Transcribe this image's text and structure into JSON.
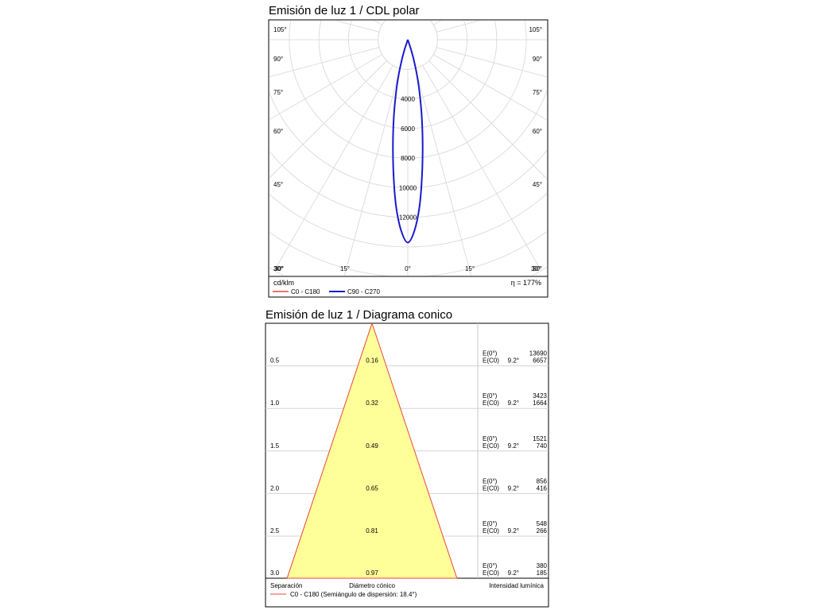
{
  "polar": {
    "title": "Emisión de luz 1 / CDL polar",
    "unit_label": "cd/klm",
    "efficiency_label": "η = 177%",
    "angle_labels_left": [
      "105°",
      "90°",
      "75°",
      "60°",
      "45°",
      "30°"
    ],
    "angle_labels_right": [
      "105°",
      "90°",
      "75°",
      "60°",
      "45°",
      "30°"
    ],
    "bottom_labels": [
      "30°",
      "15°",
      "0°",
      "15°",
      "30°"
    ],
    "legend": [
      {
        "label": "C0 - C180",
        "color": "#e8463a"
      },
      {
        "label": "C90 - C270",
        "color": "#1a1acc"
      }
    ]
  },
  "cone": {
    "title": "Emisión de luz 1 / Diagrama conico",
    "footer_separation": "Separación",
    "footer_diameter": "Diámetro cónico",
    "footer_intensity": "Intensidad lumínica",
    "legend_label": "C0 - C180 (Semiángulo de dispersión: 18.4°)",
    "legend_color": "#e8463a",
    "fill_color": "#ffff99",
    "stroke_color": "#e8463a",
    "e0_label": "E(0°)",
    "ec0_label": "E(C0)",
    "rows": [
      {
        "separation": "0.5",
        "diameter": "0.16",
        "e0": "13690",
        "angle": "9.2°",
        "ec0": "6657"
      },
      {
        "separation": "1.0",
        "diameter": "0.32",
        "e0": "3423",
        "angle": "9.2°",
        "ec0": "1664"
      },
      {
        "separation": "1.5",
        "diameter": "0.49",
        "e0": "1521",
        "angle": "9.2°",
        "ec0": "740"
      },
      {
        "separation": "2.0",
        "diameter": "0.65",
        "e0": "856",
        "angle": "9.2°",
        "ec0": "416"
      },
      {
        "separation": "2.5",
        "diameter": "0.81",
        "e0": "548",
        "angle": "9.2°",
        "ec0": "266"
      },
      {
        "separation": "3.0",
        "diameter": "0.97",
        "e0": "380",
        "angle": "9.2°",
        "ec0": "185"
      }
    ]
  },
  "chart_data": [
    {
      "type": "line",
      "subtype": "polar",
      "title": "Emisión de luz 1 / CDL polar",
      "unit": "cd/klm",
      "radial_ticks": [
        4000,
        6000,
        8000,
        10000,
        12000
      ],
      "radial_max": 14000,
      "angle_ticks": [
        0,
        15,
        30,
        45,
        60,
        75,
        90,
        105
      ],
      "efficiency": "177%",
      "series": [
        {
          "name": "C0 - C180",
          "color": "#e8463a",
          "angles": [
            0,
            2,
            4,
            6,
            8,
            10,
            12,
            14,
            16,
            18,
            20
          ],
          "values": [
            13700,
            12900,
            11300,
            9200,
            7200,
            5500,
            4000,
            2800,
            1700,
            800,
            0
          ]
        },
        {
          "name": "C90 - C270",
          "color": "#1a1acc",
          "angles": [
            0,
            2,
            4,
            6,
            8,
            10,
            12,
            14,
            16,
            18,
            20
          ],
          "values": [
            13700,
            12900,
            11300,
            9200,
            7200,
            5500,
            4000,
            2800,
            1700,
            800,
            0
          ]
        }
      ]
    },
    {
      "type": "table",
      "subtype": "cone",
      "title": "Emisión de luz 1 / Diagrama conico",
      "half_angle_deg": 18.4,
      "columns": [
        "Separación",
        "Diámetro cónico",
        "E(0°)",
        "E(C0)"
      ],
      "separation": [
        0.5,
        1.0,
        1.5,
        2.0,
        2.5,
        3.0
      ],
      "diameter": [
        0.16,
        0.32,
        0.49,
        0.65,
        0.81,
        0.97
      ],
      "e0": [
        13690,
        3423,
        1521,
        856,
        548,
        380
      ],
      "ec0": [
        6657,
        1664,
        740,
        416,
        266,
        185
      ],
      "angle": "9.2°"
    }
  ]
}
